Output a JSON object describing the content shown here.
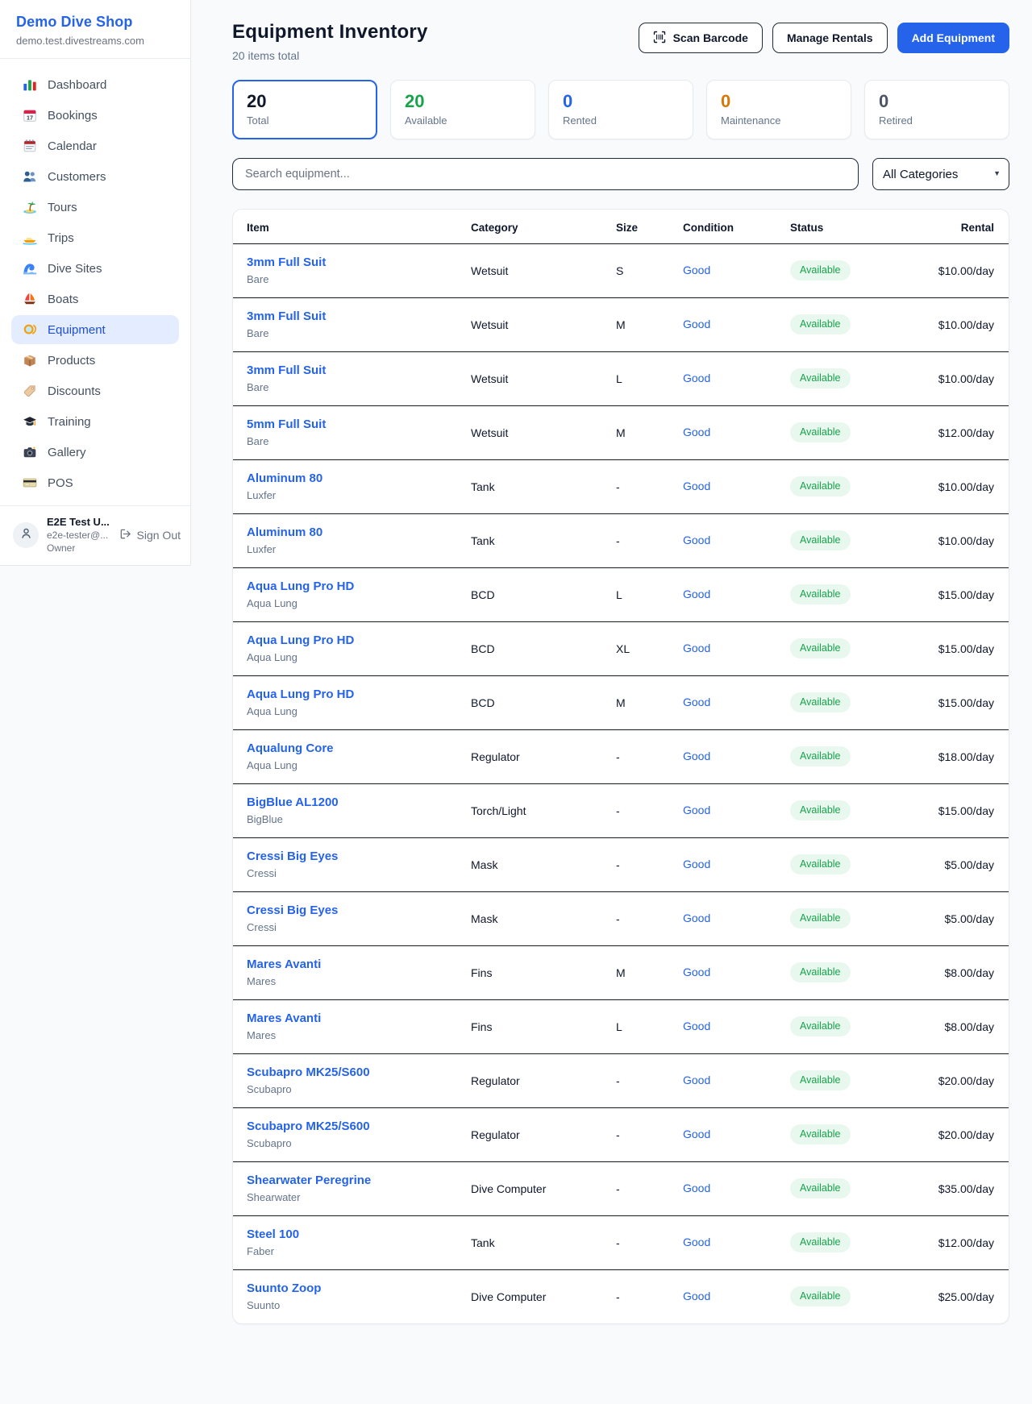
{
  "sidebar": {
    "title": "Demo Dive Shop",
    "subdomain": "demo.test.divestreams.com",
    "items": [
      {
        "label": "Dashboard",
        "icon": "bar-chart-icon",
        "active": false
      },
      {
        "label": "Bookings",
        "icon": "calendar-date-icon",
        "active": false
      },
      {
        "label": "Calendar",
        "icon": "calendar-pad-icon",
        "active": false
      },
      {
        "label": "Customers",
        "icon": "people-icon",
        "active": false
      },
      {
        "label": "Tours",
        "icon": "island-icon",
        "active": false
      },
      {
        "label": "Trips",
        "icon": "motor-boat-icon",
        "active": false
      },
      {
        "label": "Dive Sites",
        "icon": "wave-icon",
        "active": false
      },
      {
        "label": "Boats",
        "icon": "sailboat-icon",
        "active": false
      },
      {
        "label": "Equipment",
        "icon": "dive-mask-icon",
        "active": true
      },
      {
        "label": "Products",
        "icon": "package-icon",
        "active": false
      },
      {
        "label": "Discounts",
        "icon": "tag-icon",
        "active": false
      },
      {
        "label": "Training",
        "icon": "graduation-cap-icon",
        "active": false
      },
      {
        "label": "Gallery",
        "icon": "camera-icon",
        "active": false
      },
      {
        "label": "POS",
        "icon": "credit-card-icon",
        "active": false
      }
    ],
    "user": {
      "name": "E2E Test U...",
      "email": "e2e-tester@...",
      "role": "Owner",
      "sign_out_label": "Sign Out"
    }
  },
  "header": {
    "title": "Equipment Inventory",
    "subtitle": "20 items total",
    "buttons": {
      "scan": "Scan Barcode",
      "manage": "Manage Rentals",
      "add": "Add Equipment"
    }
  },
  "stats": {
    "cards": [
      {
        "value": "20",
        "label": "Total",
        "color": "#0f172a",
        "selected": true
      },
      {
        "value": "20",
        "label": "Available",
        "color": "#16a34a",
        "selected": false
      },
      {
        "value": "0",
        "label": "Rented",
        "color": "#2563eb",
        "selected": false
      },
      {
        "value": "0",
        "label": "Maintenance",
        "color": "#d97706",
        "selected": false
      },
      {
        "value": "0",
        "label": "Retired",
        "color": "#4b5563",
        "selected": false
      }
    ]
  },
  "filters": {
    "search_placeholder": "Search equipment...",
    "category_selected": "All Categories"
  },
  "table": {
    "columns": [
      "Item",
      "Category",
      "Size",
      "Condition",
      "Status",
      "Rental"
    ],
    "rows": [
      {
        "name": "3mm Full Suit",
        "brand": "Bare",
        "category": "Wetsuit",
        "size": "S",
        "condition": "Good",
        "status": "Available",
        "rental": "$10.00/day"
      },
      {
        "name": "3mm Full Suit",
        "brand": "Bare",
        "category": "Wetsuit",
        "size": "M",
        "condition": "Good",
        "status": "Available",
        "rental": "$10.00/day"
      },
      {
        "name": "3mm Full Suit",
        "brand": "Bare",
        "category": "Wetsuit",
        "size": "L",
        "condition": "Good",
        "status": "Available",
        "rental": "$10.00/day"
      },
      {
        "name": "5mm Full Suit",
        "brand": "Bare",
        "category": "Wetsuit",
        "size": "M",
        "condition": "Good",
        "status": "Available",
        "rental": "$12.00/day"
      },
      {
        "name": "Aluminum 80",
        "brand": "Luxfer",
        "category": "Tank",
        "size": "-",
        "condition": "Good",
        "status": "Available",
        "rental": "$10.00/day"
      },
      {
        "name": "Aluminum 80",
        "brand": "Luxfer",
        "category": "Tank",
        "size": "-",
        "condition": "Good",
        "status": "Available",
        "rental": "$10.00/day"
      },
      {
        "name": "Aqua Lung Pro HD",
        "brand": "Aqua Lung",
        "category": "BCD",
        "size": "L",
        "condition": "Good",
        "status": "Available",
        "rental": "$15.00/day"
      },
      {
        "name": "Aqua Lung Pro HD",
        "brand": "Aqua Lung",
        "category": "BCD",
        "size": "XL",
        "condition": "Good",
        "status": "Available",
        "rental": "$15.00/day"
      },
      {
        "name": "Aqua Lung Pro HD",
        "brand": "Aqua Lung",
        "category": "BCD",
        "size": "M",
        "condition": "Good",
        "status": "Available",
        "rental": "$15.00/day"
      },
      {
        "name": "Aqualung Core",
        "brand": "Aqua Lung",
        "category": "Regulator",
        "size": "-",
        "condition": "Good",
        "status": "Available",
        "rental": "$18.00/day"
      },
      {
        "name": "BigBlue AL1200",
        "brand": "BigBlue",
        "category": "Torch/Light",
        "size": "-",
        "condition": "Good",
        "status": "Available",
        "rental": "$15.00/day"
      },
      {
        "name": "Cressi Big Eyes",
        "brand": "Cressi",
        "category": "Mask",
        "size": "-",
        "condition": "Good",
        "status": "Available",
        "rental": "$5.00/day"
      },
      {
        "name": "Cressi Big Eyes",
        "brand": "Cressi",
        "category": "Mask",
        "size": "-",
        "condition": "Good",
        "status": "Available",
        "rental": "$5.00/day"
      },
      {
        "name": "Mares Avanti",
        "brand": "Mares",
        "category": "Fins",
        "size": "M",
        "condition": "Good",
        "status": "Available",
        "rental": "$8.00/day"
      },
      {
        "name": "Mares Avanti",
        "brand": "Mares",
        "category": "Fins",
        "size": "L",
        "condition": "Good",
        "status": "Available",
        "rental": "$8.00/day"
      },
      {
        "name": "Scubapro MK25/S600",
        "brand": "Scubapro",
        "category": "Regulator",
        "size": "-",
        "condition": "Good",
        "status": "Available",
        "rental": "$20.00/day"
      },
      {
        "name": "Scubapro MK25/S600",
        "brand": "Scubapro",
        "category": "Regulator",
        "size": "-",
        "condition": "Good",
        "status": "Available",
        "rental": "$20.00/day"
      },
      {
        "name": "Shearwater Peregrine",
        "brand": "Shearwater",
        "category": "Dive Computer",
        "size": "-",
        "condition": "Good",
        "status": "Available",
        "rental": "$35.00/day"
      },
      {
        "name": "Steel 100",
        "brand": "Faber",
        "category": "Tank",
        "size": "-",
        "condition": "Good",
        "status": "Available",
        "rental": "$12.00/day"
      },
      {
        "name": "Suunto Zoop",
        "brand": "Suunto",
        "category": "Dive Computer",
        "size": "-",
        "condition": "Good",
        "status": "Available",
        "rental": "$25.00/day"
      }
    ]
  },
  "colors": {
    "accent_blue": "#2563eb",
    "brand_title_blue": "#2563eb",
    "link_blue": "#2563eb",
    "available_green": "#16a34a",
    "available_pill_bg": "#e8f8ee",
    "maintenance_orange": "#d97706",
    "active_nav_bg": "#e3edff",
    "page_bg": "#f8fafc",
    "row_border": "#141a24"
  }
}
